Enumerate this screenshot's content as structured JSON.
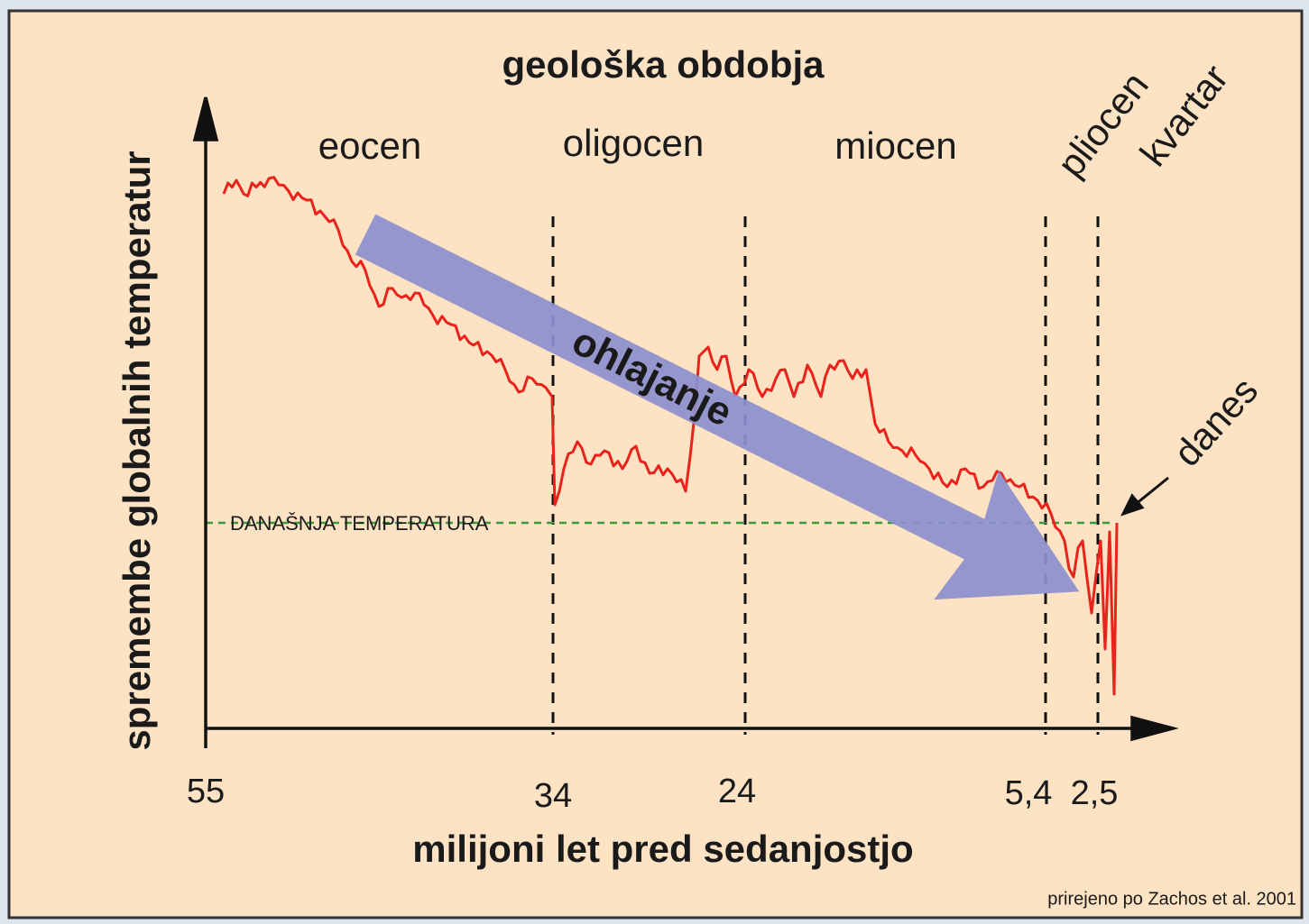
{
  "title": "geološka obdobja",
  "epochs": [
    "eocen",
    "oligocen",
    "miocen",
    "pliocen",
    "kvartar"
  ],
  "y_axis_label": "spremembe globalnih temperatur",
  "x_axis_label": "milijoni let pred sedanjostjo",
  "x_ticks": [
    "55",
    "34",
    "24",
    "5,4",
    "2,5"
  ],
  "reference_line_label": "DANAŠNJA TEMPERATURA",
  "trend_label": "ohlajanje",
  "today_label": "danes",
  "source": "prirejeno po Zachos et al. 2001"
}
